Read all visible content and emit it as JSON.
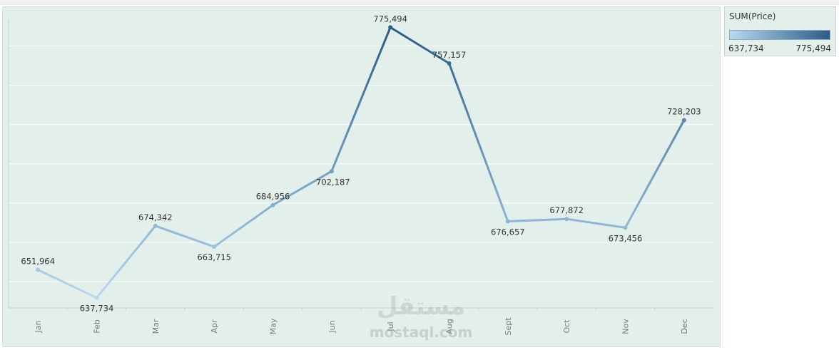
{
  "chart_data": {
    "type": "line",
    "categories": [
      "Jan",
      "Feb",
      "Mar",
      "Apr",
      "May",
      "Jun",
      "Jul",
      "Aug",
      "Sept",
      "Oct",
      "Nov",
      "Dec"
    ],
    "values": [
      651964,
      637734,
      674342,
      663715,
      684956,
      702187,
      775494,
      757157,
      676657,
      677872,
      673456,
      728203
    ],
    "data_labels": [
      "651,964",
      "637,734",
      "674,342",
      "663,715",
      "684,956",
      "702,187",
      "775,494",
      "757,157",
      "676,657",
      "677,872",
      "673,456",
      "728,203"
    ],
    "title": "",
    "xlabel": "",
    "ylabel": "",
    "ylim": [
      634000,
      780000
    ],
    "grid": true,
    "y_ticks_shown": false,
    "color_scale": {
      "min": 637734,
      "max": 775494,
      "low_color": "#b7d9ef",
      "high_color": "#2c5b88"
    }
  },
  "legend": {
    "title": "SUM(Price)",
    "min_label": "637,734",
    "max_label": "775,494",
    "placement": "top-right"
  },
  "watermark": {
    "arabic": "مستقل",
    "latin": "mostaql.com"
  },
  "colors": {
    "plot_background": "#e2efeb",
    "grid": "#ffffff",
    "line_low": "#b7d9ef",
    "line_high": "#2c5b88"
  }
}
